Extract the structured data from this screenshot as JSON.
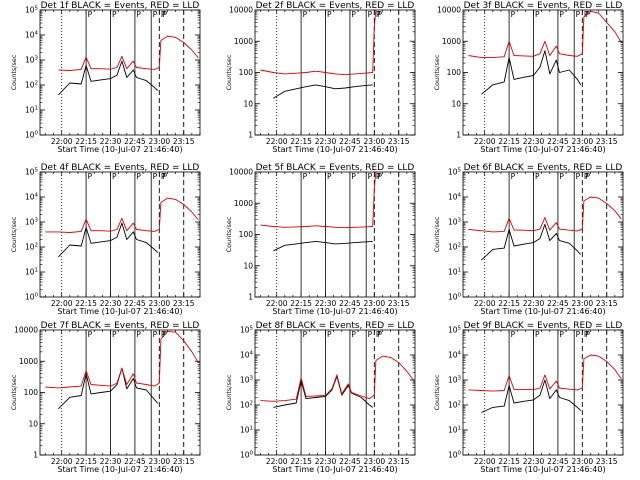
{
  "colors": {
    "events": "#000000",
    "lld": "#e00000",
    "axes": "#000000"
  },
  "x_tick_labels": [
    "22:00",
    "22:15",
    "22:30",
    "22:45",
    "23:00",
    "23:15"
  ],
  "x_title": "Start Time (10-Jul-07 21:46:40)",
  "y_title": "Counts/sec",
  "markers": {
    "solid": [
      "22:15",
      "22:30",
      "22:45",
      "22:55"
    ],
    "dotted": [
      "22:00"
    ],
    "dashed": [
      "23:00",
      "23:15"
    ],
    "labels": [
      "P",
      "P",
      "P",
      "P",
      "P",
      "P"
    ]
  },
  "chart_data": [
    {
      "type": "line",
      "title": "Det 1f BLACK = Events, RED = LLD",
      "scale": "log",
      "yticks": [
        "10^0",
        "10^1",
        "10^2",
        "10^3",
        "10^4",
        "10^5"
      ],
      "ylim": [
        1,
        100000
      ],
      "xlim": [
        "21:46:40",
        "23:25"
      ],
      "series": [
        {
          "name": "Events",
          "color": "#000000",
          "x": [
            "21:58",
            "22:05",
            "22:12",
            "22:15",
            "22:18",
            "22:24",
            "22:30",
            "22:34",
            "22:37",
            "22:40",
            "22:44",
            "22:46",
            "22:52",
            "22:57",
            "22:59"
          ],
          "y": [
            40,
            120,
            110,
            600,
            140,
            160,
            180,
            250,
            900,
            200,
            400,
            200,
            150,
            80,
            60
          ]
        },
        {
          "name": "LLD",
          "color": "#e00000",
          "x": [
            "21:58",
            "22:05",
            "22:12",
            "22:15",
            "22:18",
            "22:24",
            "22:30",
            "22:34",
            "22:37",
            "22:40",
            "22:44",
            "22:46",
            "22:52",
            "22:57",
            "23:00",
            "23:01",
            "23:05",
            "23:10",
            "23:15",
            "23:20",
            "23:24"
          ],
          "y": [
            400,
            380,
            420,
            1300,
            450,
            450,
            430,
            500,
            1400,
            450,
            900,
            500,
            450,
            420,
            500,
            6000,
            9000,
            8000,
            5000,
            2500,
            1200
          ]
        }
      ]
    },
    {
      "type": "line",
      "title": "Det 2f BLACK = Events, RED = LLD",
      "scale": "log",
      "yticks": [
        "1",
        "10",
        "100",
        "1000",
        "10000"
      ],
      "ylim": [
        1,
        10000
      ],
      "xlim": [
        "21:46:40",
        "23:25"
      ],
      "series": [
        {
          "name": "Events",
          "color": "#000000",
          "x": [
            "21:58",
            "22:05",
            "22:12",
            "22:18",
            "22:24",
            "22:30",
            "22:36",
            "22:42",
            "22:48",
            "22:54",
            "22:59"
          ],
          "y": [
            15,
            25,
            30,
            35,
            40,
            35,
            30,
            32,
            35,
            38,
            40
          ]
        },
        {
          "name": "LLD",
          "color": "#e00000",
          "x": [
            "21:50",
            "21:58",
            "22:05",
            "22:12",
            "22:18",
            "22:24",
            "22:30",
            "22:36",
            "22:42",
            "22:48",
            "22:54",
            "22:59",
            "23:00",
            "23:01"
          ],
          "y": [
            120,
            100,
            90,
            95,
            100,
            110,
            100,
            90,
            85,
            90,
            95,
            100,
            3000,
            10000
          ]
        }
      ]
    },
    {
      "type": "line",
      "title": "Det 3f BLACK = Events, RED = LLD",
      "scale": "log",
      "yticks": [
        "1",
        "10",
        "100",
        "1000",
        "10000"
      ],
      "ylim": [
        1,
        10000
      ],
      "xlim": [
        "21:46:40",
        "23:25"
      ],
      "series": [
        {
          "name": "Events",
          "color": "#000000",
          "x": [
            "21:58",
            "22:05",
            "22:12",
            "22:15",
            "22:18",
            "22:24",
            "22:30",
            "22:34",
            "22:37",
            "22:40",
            "22:44",
            "22:46",
            "22:52",
            "22:57",
            "22:59"
          ],
          "y": [
            20,
            40,
            50,
            300,
            60,
            70,
            80,
            150,
            500,
            90,
            250,
            100,
            120,
            60,
            40
          ]
        },
        {
          "name": "LLD",
          "color": "#e00000",
          "x": [
            "21:50",
            "21:58",
            "22:05",
            "22:12",
            "22:15",
            "22:18",
            "22:24",
            "22:30",
            "22:34",
            "22:37",
            "22:40",
            "22:44",
            "22:46",
            "22:52",
            "22:57",
            "23:00",
            "23:01",
            "23:05",
            "23:10",
            "23:15",
            "23:20",
            "23:24"
          ],
          "y": [
            350,
            300,
            300,
            320,
            1000,
            350,
            340,
            330,
            400,
            1000,
            350,
            700,
            400,
            350,
            330,
            400,
            6000,
            9000,
            8000,
            4000,
            2000,
            900
          ]
        }
      ]
    },
    {
      "type": "line",
      "title": "Det 4f BLACK = Events, RED = LLD",
      "scale": "log",
      "yticks": [
        "10^0",
        "10^1",
        "10^2",
        "10^3",
        "10^4",
        "10^5"
      ],
      "ylim": [
        1,
        100000
      ],
      "xlim": [
        "21:46:40",
        "23:25"
      ],
      "series": [
        {
          "name": "Events",
          "color": "#000000",
          "x": [
            "21:58",
            "22:05",
            "22:12",
            "22:15",
            "22:18",
            "22:24",
            "22:30",
            "22:34",
            "22:37",
            "22:40",
            "22:44",
            "22:46",
            "22:52",
            "22:57",
            "22:59"
          ],
          "y": [
            40,
            120,
            110,
            600,
            140,
            160,
            180,
            250,
            900,
            200,
            400,
            200,
            150,
            80,
            60
          ]
        },
        {
          "name": "LLD",
          "color": "#e00000",
          "x": [
            "21:50",
            "21:58",
            "22:05",
            "22:12",
            "22:15",
            "22:18",
            "22:24",
            "22:30",
            "22:34",
            "22:37",
            "22:40",
            "22:44",
            "22:46",
            "22:52",
            "22:57",
            "23:00",
            "23:01",
            "23:05",
            "23:10",
            "23:15",
            "23:20",
            "23:24"
          ],
          "y": [
            400,
            400,
            380,
            420,
            1300,
            450,
            450,
            430,
            500,
            1400,
            450,
            900,
            500,
            450,
            420,
            500,
            6000,
            9000,
            8000,
            5000,
            2500,
            1200
          ]
        }
      ]
    },
    {
      "type": "line",
      "title": "Det 5f BLACK = Events, RED = LLD",
      "scale": "log",
      "yticks": [
        "1",
        "10",
        "100",
        "1000",
        "10000"
      ],
      "ylim": [
        1,
        10000
      ],
      "xlim": [
        "21:46:40",
        "23:25"
      ],
      "series": [
        {
          "name": "Events",
          "color": "#000000",
          "x": [
            "21:58",
            "22:05",
            "22:12",
            "22:18",
            "22:24",
            "22:30",
            "22:36",
            "22:42",
            "22:48",
            "22:54",
            "22:59"
          ],
          "y": [
            30,
            45,
            50,
            55,
            60,
            55,
            50,
            52,
            55,
            58,
            60
          ]
        },
        {
          "name": "LLD",
          "color": "#e00000",
          "x": [
            "21:50",
            "21:58",
            "22:05",
            "22:12",
            "22:18",
            "22:24",
            "22:30",
            "22:36",
            "22:42",
            "22:48",
            "22:54",
            "22:59",
            "23:00",
            "23:01"
          ],
          "y": [
            200,
            180,
            170,
            175,
            180,
            190,
            180,
            170,
            165,
            170,
            175,
            180,
            3000,
            10000
          ]
        }
      ]
    },
    {
      "type": "line",
      "title": "Det 6f BLACK = Events, RED = LLD",
      "scale": "log",
      "yticks": [
        "10^0",
        "10^1",
        "10^2",
        "10^3",
        "10^4",
        "10^5"
      ],
      "ylim": [
        1,
        100000
      ],
      "xlim": [
        "21:46:40",
        "23:25"
      ],
      "series": [
        {
          "name": "Events",
          "color": "#000000",
          "x": [
            "21:58",
            "22:05",
            "22:12",
            "22:15",
            "22:18",
            "22:24",
            "22:30",
            "22:34",
            "22:37",
            "22:40",
            "22:44",
            "22:46",
            "22:52",
            "22:57",
            "22:59"
          ],
          "y": [
            30,
            80,
            90,
            500,
            110,
            130,
            150,
            220,
            800,
            180,
            350,
            180,
            140,
            70,
            50
          ]
        },
        {
          "name": "LLD",
          "color": "#e00000",
          "x": [
            "21:50",
            "21:58",
            "22:05",
            "22:12",
            "22:15",
            "22:18",
            "22:24",
            "22:30",
            "22:34",
            "22:37",
            "22:40",
            "22:44",
            "22:46",
            "22:52",
            "22:57",
            "23:00",
            "23:01",
            "23:05",
            "23:10",
            "23:15",
            "23:20",
            "23:24"
          ],
          "y": [
            500,
            450,
            400,
            420,
            1400,
            480,
            470,
            450,
            520,
            1500,
            470,
            950,
            520,
            470,
            440,
            520,
            7000,
            10000,
            9000,
            5500,
            2800,
            1300
          ]
        }
      ]
    },
    {
      "type": "line",
      "title": "Det 7f BLACK = Events, RED = LLD",
      "scale": "log",
      "yticks": [
        "1",
        "10",
        "100",
        "1000",
        "10000"
      ],
      "ylim": [
        1,
        10000
      ],
      "xlim": [
        "21:46:40",
        "23:25"
      ],
      "series": [
        {
          "name": "Events",
          "color": "#000000",
          "x": [
            "21:58",
            "22:05",
            "22:12",
            "22:15",
            "22:18",
            "22:24",
            "22:30",
            "22:34",
            "22:37",
            "22:40",
            "22:44",
            "22:46",
            "22:52",
            "22:57",
            "22:59"
          ],
          "y": [
            30,
            70,
            80,
            400,
            90,
            100,
            110,
            180,
            600,
            130,
            280,
            140,
            120,
            60,
            45
          ]
        },
        {
          "name": "LLD",
          "color": "#e00000",
          "x": [
            "21:50",
            "21:58",
            "22:05",
            "22:12",
            "22:15",
            "22:18",
            "22:24",
            "22:30",
            "22:34",
            "22:37",
            "22:40",
            "22:44",
            "22:46",
            "22:52",
            "22:57",
            "23:00",
            "23:01",
            "23:05",
            "23:10",
            "23:15",
            "23:20",
            "23:24"
          ],
          "y": [
            150,
            140,
            150,
            160,
            500,
            180,
            170,
            160,
            200,
            600,
            180,
            400,
            200,
            180,
            160,
            200,
            5000,
            9000,
            8500,
            4500,
            2000,
            900
          ]
        }
      ]
    },
    {
      "type": "line",
      "title": "Det 8f BLACK = Events, RED = LLD",
      "scale": "log",
      "yticks": [
        "10^0",
        "10^1",
        "10^2",
        "10^3",
        "10^4",
        "10^5"
      ],
      "ylim": [
        1,
        100000
      ],
      "xlim": [
        "21:46:40",
        "23:25"
      ],
      "series": [
        {
          "name": "Events",
          "color": "#000000",
          "x": [
            "21:58",
            "22:05",
            "22:12",
            "22:15",
            "22:18",
            "22:24",
            "22:30",
            "22:34",
            "22:37",
            "22:40",
            "22:44",
            "22:46",
            "22:52",
            "22:57",
            "22:59"
          ],
          "y": [
            80,
            100,
            120,
            900,
            180,
            200,
            220,
            400,
            1400,
            250,
            600,
            300,
            200,
            100,
            80
          ]
        },
        {
          "name": "LLD",
          "color": "#e00000",
          "x": [
            "21:50",
            "21:58",
            "22:05",
            "22:12",
            "22:15",
            "22:18",
            "22:24",
            "22:30",
            "22:34",
            "22:37",
            "22:40",
            "22:44",
            "22:46",
            "22:52",
            "22:57",
            "23:00",
            "23:01",
            "23:05",
            "23:10",
            "23:15",
            "23:20",
            "23:24"
          ],
          "y": [
            150,
            140,
            150,
            170,
            1200,
            220,
            230,
            240,
            450,
            1600,
            280,
            700,
            320,
            230,
            180,
            250,
            6000,
            9000,
            8000,
            5000,
            2200,
            1000
          ]
        }
      ]
    },
    {
      "type": "line",
      "title": "Det 9f BLACK = Events, RED = LLD",
      "scale": "log",
      "yticks": [
        "10^0",
        "10^1",
        "10^2",
        "10^3",
        "10^4",
        "10^5"
      ],
      "ylim": [
        1,
        100000
      ],
      "xlim": [
        "21:46:40",
        "23:25"
      ],
      "series": [
        {
          "name": "Events",
          "color": "#000000",
          "x": [
            "21:58",
            "22:05",
            "22:12",
            "22:15",
            "22:18",
            "22:24",
            "22:30",
            "22:34",
            "22:37",
            "22:40",
            "22:44",
            "22:46",
            "22:52",
            "22:57",
            "22:59"
          ],
          "y": [
            50,
            80,
            90,
            600,
            120,
            140,
            160,
            250,
            1000,
            180,
            400,
            200,
            150,
            80,
            60
          ]
        },
        {
          "name": "LLD",
          "color": "#e00000",
          "x": [
            "21:50",
            "21:58",
            "22:05",
            "22:12",
            "22:15",
            "22:18",
            "22:24",
            "22:30",
            "22:34",
            "22:37",
            "22:40",
            "22:44",
            "22:46",
            "22:52",
            "22:57",
            "23:00",
            "23:01",
            "23:05",
            "23:10",
            "23:15",
            "23:20",
            "23:24"
          ],
          "y": [
            400,
            380,
            360,
            380,
            1500,
            420,
            420,
            410,
            480,
            1600,
            440,
            900,
            480,
            430,
            400,
            480,
            7000,
            10000,
            9000,
            5500,
            2600,
            1100
          ]
        }
      ]
    }
  ]
}
